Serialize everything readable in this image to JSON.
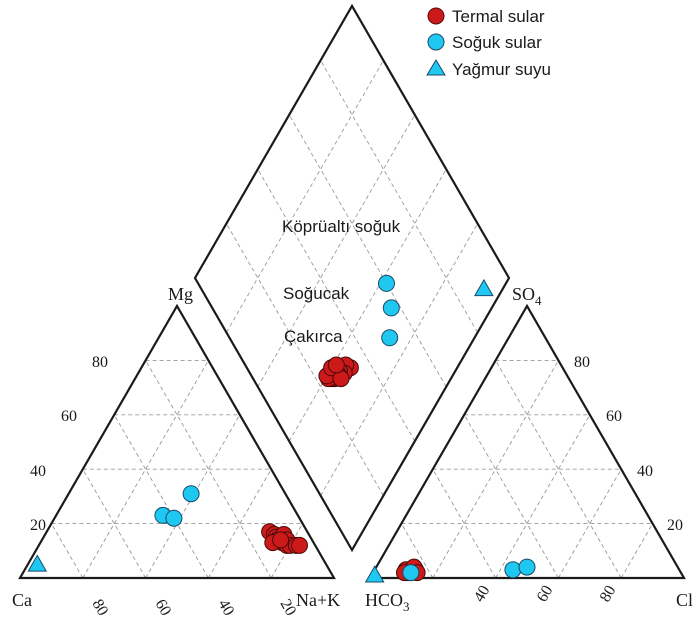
{
  "chart_data": {
    "type": "scatter",
    "legend": {
      "placement": "top-right",
      "items": [
        {
          "name": "Termal sular",
          "marker": "circle",
          "color": "#cc1a1a"
        },
        {
          "name": "Soğuk sular",
          "marker": "circle",
          "color": "#1ec8f0"
        },
        {
          "name": "Yağmur suyu",
          "marker": "triangle",
          "color": "#1ec8f0"
        }
      ]
    },
    "cation_triangle": {
      "vertices": {
        "left": "Ca",
        "right": "Na+K",
        "top": "Mg"
      },
      "bottom_ticks": [
        "80",
        "60",
        "40",
        "20"
      ],
      "left_ticks": [
        "20",
        "40",
        "60",
        "80"
      ],
      "grid": true
    },
    "anion_triangle": {
      "vertices": {
        "left": "HCO",
        "left_sub": "3",
        "right": "Cl",
        "top": "SO",
        "top_sub": "4"
      },
      "bottom_ticks": [
        "40",
        "60",
        "80"
      ],
      "right_ticks": [
        "20",
        "40",
        "60",
        "80"
      ],
      "grid": true
    },
    "annotations": [
      {
        "text": "Köprüaltı soğuk"
      },
      {
        "text": "Soğucak"
      },
      {
        "text": "Çakırca"
      }
    ],
    "series": [
      {
        "name": "Termal sular",
        "cation": [
          [
            71,
            17
          ],
          [
            73,
            16
          ],
          [
            74,
            15
          ],
          [
            75,
            14
          ],
          [
            76,
            16
          ],
          [
            77,
            13
          ],
          [
            78,
            14
          ],
          [
            79,
            12
          ],
          [
            80,
            12
          ],
          [
            82,
            12
          ],
          [
            83,
            12
          ],
          [
            74,
            13
          ],
          [
            76,
            14
          ]
        ],
        "anion": [
          [
            10,
            3
          ],
          [
            11,
            2
          ],
          [
            12,
            2
          ],
          [
            13,
            3
          ],
          [
            12,
            4
          ],
          [
            14,
            2
          ],
          [
            10,
            2
          ]
        ],
        "diamond": [
          [
            34,
            33
          ],
          [
            36,
            32
          ],
          [
            35,
            30
          ],
          [
            37,
            29
          ],
          [
            36,
            28
          ],
          [
            38,
            28
          ],
          [
            37,
            26
          ],
          [
            38,
            25
          ],
          [
            39,
            24
          ],
          [
            40,
            24
          ],
          [
            40,
            27
          ],
          [
            35,
            28
          ],
          [
            39,
            29
          ]
        ]
      },
      {
        "name": "Soğuk sular",
        "cation": [
          [
            34,
            23
          ],
          [
            38,
            22
          ],
          [
            39,
            31
          ]
        ],
        "anion": [
          [
            12,
            2
          ],
          [
            44,
            3
          ],
          [
            48,
            4
          ]
        ],
        "diamond": [
          [
            27,
            51
          ],
          [
            32,
            57
          ],
          [
            38,
            60
          ]
        ]
      },
      {
        "name": "Yağmur suyu",
        "cation": [
          [
            3,
            5
          ]
        ],
        "anion": [
          [
            1,
            1
          ]
        ],
        "diamond": [
          [
            6,
            90
          ]
        ]
      }
    ]
  }
}
